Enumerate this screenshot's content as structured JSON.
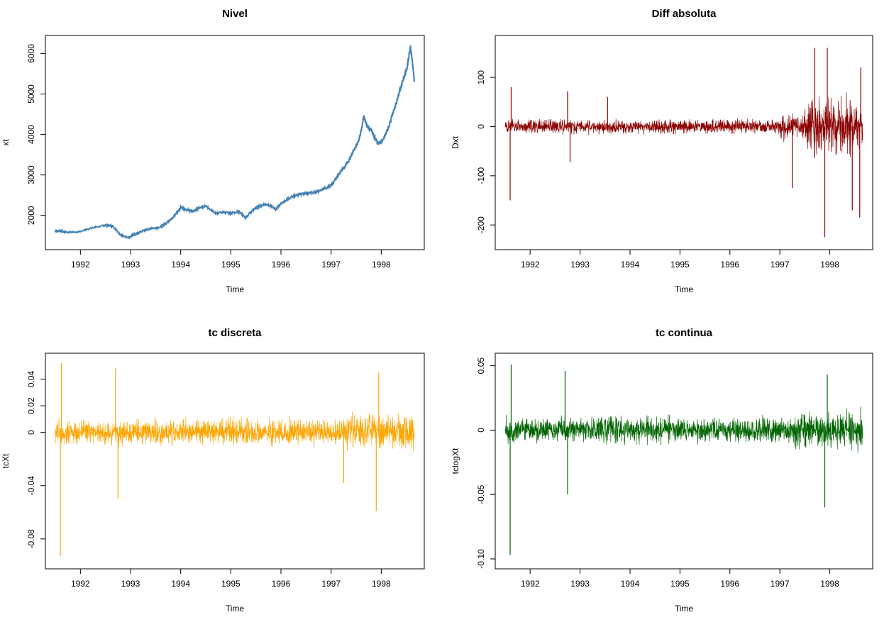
{
  "chart_data": [
    {
      "id": "nivel",
      "type": "line",
      "title": "Nivel",
      "xlabel": "Time",
      "ylabel": "xt",
      "color": "#4682B4",
      "xlim": [
        1991.5,
        1998.66
      ],
      "ylim": [
        1400,
        6200
      ],
      "x_ticks": [
        1992,
        1993,
        1994,
        1995,
        1996,
        1997,
        1998
      ],
      "y_ticks": [
        2000,
        3000,
        4000,
        5000,
        6000
      ],
      "series": [
        {
          "x": [
            1991.5,
            1991.6,
            1991.75,
            1992.0,
            1992.25,
            1992.5,
            1992.65,
            1992.8,
            1992.95,
            1993.1,
            1993.25,
            1993.4,
            1993.55,
            1993.7,
            1993.85,
            1994.0,
            1994.1,
            1994.25,
            1994.35,
            1994.5,
            1994.7,
            1994.85,
            1995.0,
            1995.15,
            1995.3,
            1995.45,
            1995.6,
            1995.75,
            1995.9,
            1996.0,
            1996.15,
            1996.3,
            1996.5,
            1996.7,
            1996.85,
            1997.0,
            1997.1,
            1997.2,
            1997.35,
            1997.45,
            1997.55,
            1997.6,
            1997.65,
            1997.72,
            1997.8,
            1997.88,
            1997.95,
            1998.05,
            1998.15,
            1998.25,
            1998.35,
            1998.45,
            1998.52,
            1998.58,
            1998.62,
            1998.66
          ],
          "y": [
            1600,
            1620,
            1580,
            1600,
            1700,
            1760,
            1730,
            1520,
            1450,
            1540,
            1620,
            1680,
            1690,
            1800,
            1950,
            2200,
            2150,
            2100,
            2180,
            2240,
            2050,
            2080,
            2050,
            2100,
            1950,
            2150,
            2250,
            2270,
            2150,
            2300,
            2420,
            2500,
            2550,
            2580,
            2650,
            2750,
            2900,
            3100,
            3350,
            3600,
            3850,
            4100,
            4450,
            4200,
            4100,
            3900,
            3750,
            3900,
            4200,
            4600,
            5000,
            5400,
            5700,
            6150,
            5800,
            5300
          ]
        }
      ]
    },
    {
      "id": "diff",
      "type": "line",
      "title": "Diff absoluta",
      "xlabel": "Time",
      "ylabel": "Dxt",
      "color": "#8B0000",
      "xlim": [
        1991.5,
        1998.66
      ],
      "ylim": [
        -230,
        165
      ],
      "x_ticks": [
        1992,
        1993,
        1994,
        1995,
        1996,
        1997,
        1998
      ],
      "y_ticks": [
        -200,
        -100,
        0,
        100
      ],
      "spikes": [
        {
          "x": 1991.6,
          "y": -150
        },
        {
          "x": 1991.62,
          "y": 80
        },
        {
          "x": 1992.75,
          "y": 72
        },
        {
          "x": 1992.8,
          "y": -72
        },
        {
          "x": 1993.55,
          "y": 60
        },
        {
          "x": 1997.25,
          "y": -125
        },
        {
          "x": 1997.7,
          "y": 160
        },
        {
          "x": 1997.9,
          "y": -225
        },
        {
          "x": 1997.95,
          "y": 160
        },
        {
          "x": 1998.45,
          "y": -170
        },
        {
          "x": 1998.6,
          "y": -185
        },
        {
          "x": 1998.62,
          "y": 120
        }
      ]
    },
    {
      "id": "tc-discreta",
      "type": "line",
      "title": "tc discreta",
      "xlabel": "Time",
      "ylabel": "tcXt",
      "color": "#FFA500",
      "xlim": [
        1991.5,
        1998.66
      ],
      "ylim": [
        -0.095,
        0.052
      ],
      "x_ticks": [
        1992,
        1993,
        1994,
        1995,
        1996,
        1997,
        1998
      ],
      "y_ticks": [
        -0.08,
        -0.04,
        0.0,
        0.02,
        0.04
      ],
      "spikes": [
        {
          "x": 1991.6,
          "y": -0.093
        },
        {
          "x": 1991.62,
          "y": 0.052
        },
        {
          "x": 1992.7,
          "y": 0.048
        },
        {
          "x": 1992.75,
          "y": -0.05
        },
        {
          "x": 1997.25,
          "y": -0.038
        },
        {
          "x": 1997.9,
          "y": -0.059
        },
        {
          "x": 1997.95,
          "y": 0.045
        }
      ]
    },
    {
      "id": "tc-continua",
      "type": "line",
      "title": "tc continua",
      "xlabel": "Time",
      "ylabel": "tclogXt",
      "color": "#006400",
      "xlim": [
        1991.5,
        1998.66
      ],
      "ylim": [
        -0.1,
        0.052
      ],
      "x_ticks": [
        1992,
        1993,
        1994,
        1995,
        1996,
        1997,
        1998
      ],
      "y_ticks": [
        -0.1,
        -0.05,
        0.0,
        0.05
      ],
      "spikes": [
        {
          "x": 1991.6,
          "y": -0.097
        },
        {
          "x": 1991.62,
          "y": 0.051
        },
        {
          "x": 1992.7,
          "y": 0.046
        },
        {
          "x": 1992.75,
          "y": -0.05
        },
        {
          "x": 1997.9,
          "y": -0.06
        },
        {
          "x": 1997.95,
          "y": 0.043
        }
      ]
    }
  ]
}
